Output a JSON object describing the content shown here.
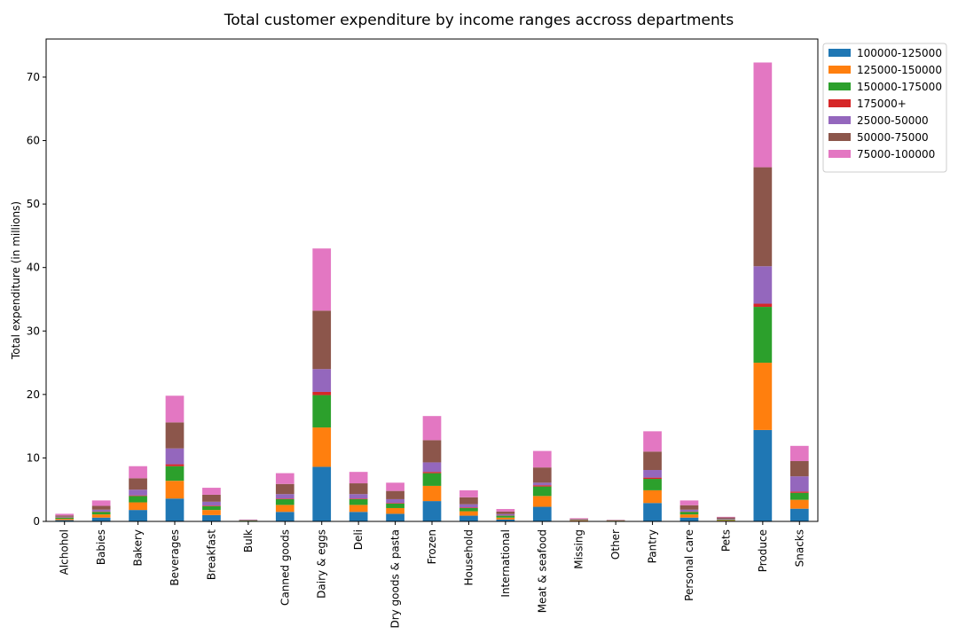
{
  "chart_data": {
    "type": "bar",
    "stacked": true,
    "title": "Total customer expenditure by income ranges accross departments",
    "xlabel": "",
    "ylabel": "Total expenditure (in millions)",
    "ylim": [
      0,
      76
    ],
    "yticks": [
      0,
      10,
      20,
      30,
      40,
      50,
      60,
      70
    ],
    "grid": false,
    "legend_position": "outside top-right",
    "categories": [
      "Alchohol",
      "Babies",
      "Bakery",
      "Beverages",
      "Breakfast",
      "Bulk",
      "Canned goods",
      "Dairy & eggs",
      "Deli",
      "Dry goods & pasta",
      "Frozen",
      "Household",
      "International",
      "Meat & seafood",
      "Missing",
      "Other",
      "Pantry",
      "Personal care",
      "Pets",
      "Produce",
      "Snacks"
    ],
    "series": [
      {
        "name": "100000-125000",
        "color": "#1f77b4",
        "values": [
          0.2,
          0.6,
          1.8,
          3.6,
          1.0,
          0.05,
          1.5,
          8.6,
          1.5,
          1.2,
          3.2,
          0.9,
          0.3,
          2.3,
          0.08,
          0.05,
          2.9,
          0.6,
          0.1,
          14.4,
          2.0
        ]
      },
      {
        "name": "125000-150000",
        "color": "#ff7f0e",
        "values": [
          0.2,
          0.5,
          1.2,
          2.8,
          0.8,
          0.05,
          1.1,
          6.2,
          1.1,
          0.9,
          2.4,
          0.7,
          0.3,
          1.7,
          0.07,
          0.05,
          2.0,
          0.5,
          0.1,
          10.6,
          1.4
        ]
      },
      {
        "name": "150000-175000",
        "color": "#2ca02c",
        "values": [
          0.2,
          0.4,
          1.0,
          2.3,
          0.6,
          0.05,
          0.9,
          5.1,
          0.9,
          0.7,
          2.0,
          0.5,
          0.3,
          1.5,
          0.05,
          0.03,
          1.8,
          0.4,
          0.1,
          8.8,
          1.1
        ]
      },
      {
        "name": "175000+",
        "color": "#d62728",
        "values": [
          0.04,
          0.05,
          0.1,
          0.3,
          0.1,
          0.02,
          0.1,
          0.5,
          0.1,
          0.1,
          0.2,
          0.1,
          0.05,
          0.2,
          0.02,
          0.01,
          0.2,
          0.05,
          0.02,
          0.5,
          0.2
        ]
      },
      {
        "name": "25000-50000",
        "color": "#9467bd",
        "values": [
          0.1,
          0.3,
          0.9,
          2.5,
          0.6,
          0.05,
          0.7,
          3.6,
          0.7,
          0.6,
          1.5,
          0.5,
          0.2,
          0.4,
          0.05,
          0.03,
          1.2,
          0.3,
          0.1,
          5.9,
          2.4
        ]
      },
      {
        "name": "50000-75000",
        "color": "#8c564b",
        "values": [
          0.2,
          0.6,
          1.8,
          4.1,
          1.1,
          0.05,
          1.6,
          9.2,
          1.7,
          1.3,
          3.5,
          1.1,
          0.4,
          2.4,
          0.1,
          0.05,
          2.9,
          0.7,
          0.2,
          15.6,
          2.4
        ]
      },
      {
        "name": "75000-100000",
        "color": "#e377c2",
        "values": [
          0.26,
          0.85,
          1.9,
          4.2,
          1.1,
          0.03,
          1.7,
          9.8,
          1.8,
          1.3,
          3.8,
          1.1,
          0.4,
          2.6,
          0.13,
          0.03,
          3.2,
          0.75,
          0.1,
          16.5,
          2.4
        ]
      }
    ]
  }
}
